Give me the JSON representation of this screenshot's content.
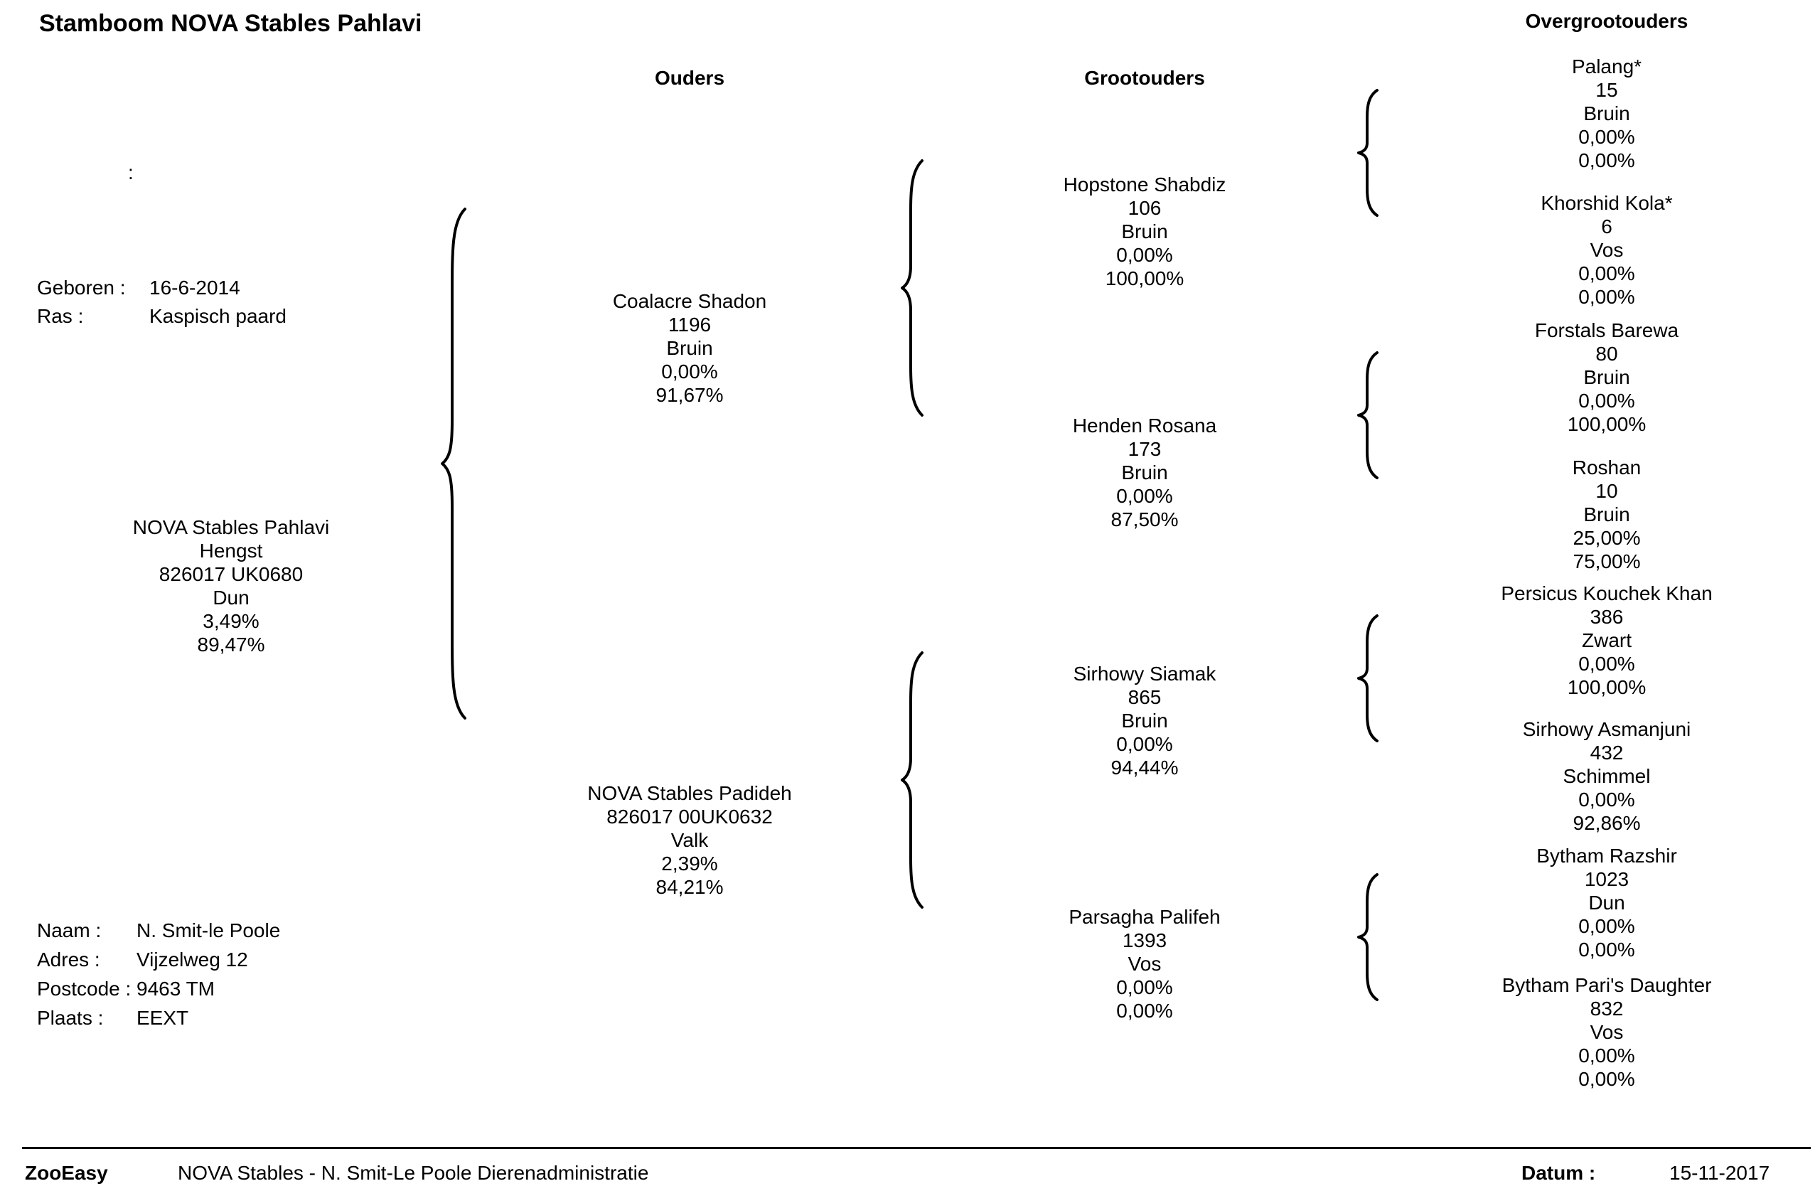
{
  "title": "Stamboom NOVA Stables Pahlavi",
  "columns": {
    "parents": "Ouders",
    "grandparents": "Grootouders",
    "great_grandparents": "Overgrootouders"
  },
  "colon_marker": ":",
  "info": {
    "born_label": "Geboren :",
    "born_value": "16-6-2014",
    "breed_label": "Ras :",
    "breed_value": "Kaspisch paard"
  },
  "subject": {
    "name": "NOVA Stables Pahlavi",
    "sex": "Hengst",
    "id": "826017 UK0680",
    "color": "Dun",
    "inbreeding": "3,49%",
    "percent": "89,47%"
  },
  "parents": [
    {
      "name": "Coalacre Shadon",
      "id": "1196",
      "color": "Bruin",
      "inbreeding": "0,00%",
      "percent": "91,67%"
    },
    {
      "name": "NOVA Stables Padideh",
      "id": "826017 00UK0632",
      "color": "Valk",
      "inbreeding": "2,39%",
      "percent": "84,21%"
    }
  ],
  "grandparents": [
    {
      "name": "Hopstone Shabdiz",
      "id": "106",
      "color": "Bruin",
      "inbreeding": "0,00%",
      "percent": "100,00%"
    },
    {
      "name": "Henden Rosana",
      "id": "173",
      "color": "Bruin",
      "inbreeding": "0,00%",
      "percent": "87,50%"
    },
    {
      "name": "Sirhowy Siamak",
      "id": "865",
      "color": "Bruin",
      "inbreeding": "0,00%",
      "percent": "94,44%"
    },
    {
      "name": "Parsagha Palifeh",
      "id": "1393",
      "color": "Vos",
      "inbreeding": "0,00%",
      "percent": "0,00%"
    }
  ],
  "great_grandparents": [
    {
      "name": "Palang*",
      "id": "15",
      "color": "Bruin",
      "inbreeding": "0,00%",
      "percent": "0,00%"
    },
    {
      "name": "Khorshid Kola*",
      "id": "6",
      "color": "Vos",
      "inbreeding": "0,00%",
      "percent": "0,00%"
    },
    {
      "name": "Forstals Barewa",
      "id": "80",
      "color": "Bruin",
      "inbreeding": "0,00%",
      "percent": "100,00%"
    },
    {
      "name": "Roshan",
      "id": "10",
      "color": "Bruin",
      "inbreeding": "25,00%",
      "percent": "75,00%"
    },
    {
      "name": "Persicus Kouchek Khan",
      "id": "386",
      "color": "Zwart",
      "inbreeding": "0,00%",
      "percent": "100,00%"
    },
    {
      "name": "Sirhowy Asmanjuni",
      "id": "432",
      "color": "Schimmel",
      "inbreeding": "0,00%",
      "percent": "92,86%"
    },
    {
      "name": "Bytham Razshir",
      "id": "1023",
      "color": "Dun",
      "inbreeding": "0,00%",
      "percent": "0,00%"
    },
    {
      "name": "Bytham Pari's Daughter",
      "id": "832",
      "color": "Vos",
      "inbreeding": "0,00%",
      "percent": "0,00%"
    }
  ],
  "owner": {
    "name_label": "Naam :",
    "name_value": "N.  Smit-le Poole",
    "address_label": "Adres :",
    "address_value": "Vijzelweg 12",
    "postcode_label": "Postcode :",
    "postcode_value": "9463 TM",
    "city_label": "Plaats :",
    "city_value": "EEXT"
  },
  "footer": {
    "brand": "ZooEasy",
    "organisation": "NOVA Stables - N. Smit-Le Poole Dierenadministratie",
    "date_label": "Datum :",
    "date_value": "15-11-2017"
  }
}
